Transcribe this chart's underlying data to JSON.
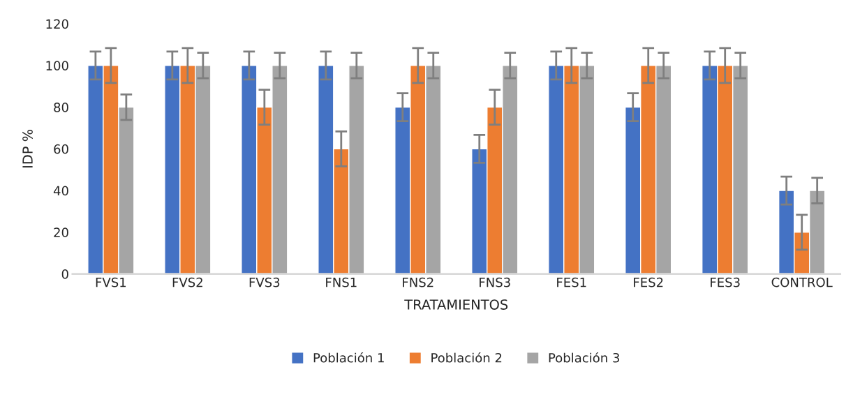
{
  "chart_data": {
    "type": "bar",
    "xlabel": "TRATAMIENTOS",
    "ylabel": "IDP %",
    "categories": [
      "FVS1",
      "FVS2",
      "FVS3",
      "FNS1",
      "FNS2",
      "FNS3",
      "FES1",
      "FES2",
      "FES3",
      "CONTROL"
    ],
    "series": [
      {
        "name": "Población 1",
        "color": "#4472c4",
        "values": [
          100,
          100,
          100,
          100,
          80,
          60,
          100,
          80,
          100,
          40
        ],
        "errors": [
          6.7,
          6.7,
          6.7,
          6.7,
          6.7,
          6.7,
          6.7,
          6.7,
          6.7,
          6.7
        ]
      },
      {
        "name": "Población 2",
        "color": "#ed7d31",
        "values": [
          100,
          100,
          80,
          60,
          100,
          80,
          100,
          100,
          100,
          20
        ],
        "errors": [
          8.4,
          8.4,
          8.4,
          8.4,
          8.4,
          8.4,
          8.4,
          8.4,
          8.4,
          8.4
        ]
      },
      {
        "name": "Población 3",
        "color": "#a5a5a5",
        "values": [
          80,
          100,
          100,
          100,
          100,
          100,
          100,
          100,
          100,
          40
        ],
        "errors": [
          6.1,
          6.1,
          6.1,
          6.1,
          6.1,
          6.1,
          6.1,
          6.1,
          6.1,
          6.1
        ]
      }
    ],
    "ylim": [
      0,
      120
    ],
    "yticks": [
      0,
      20,
      40,
      60,
      80,
      100,
      120
    ],
    "grid": false,
    "legend": "bottom"
  }
}
